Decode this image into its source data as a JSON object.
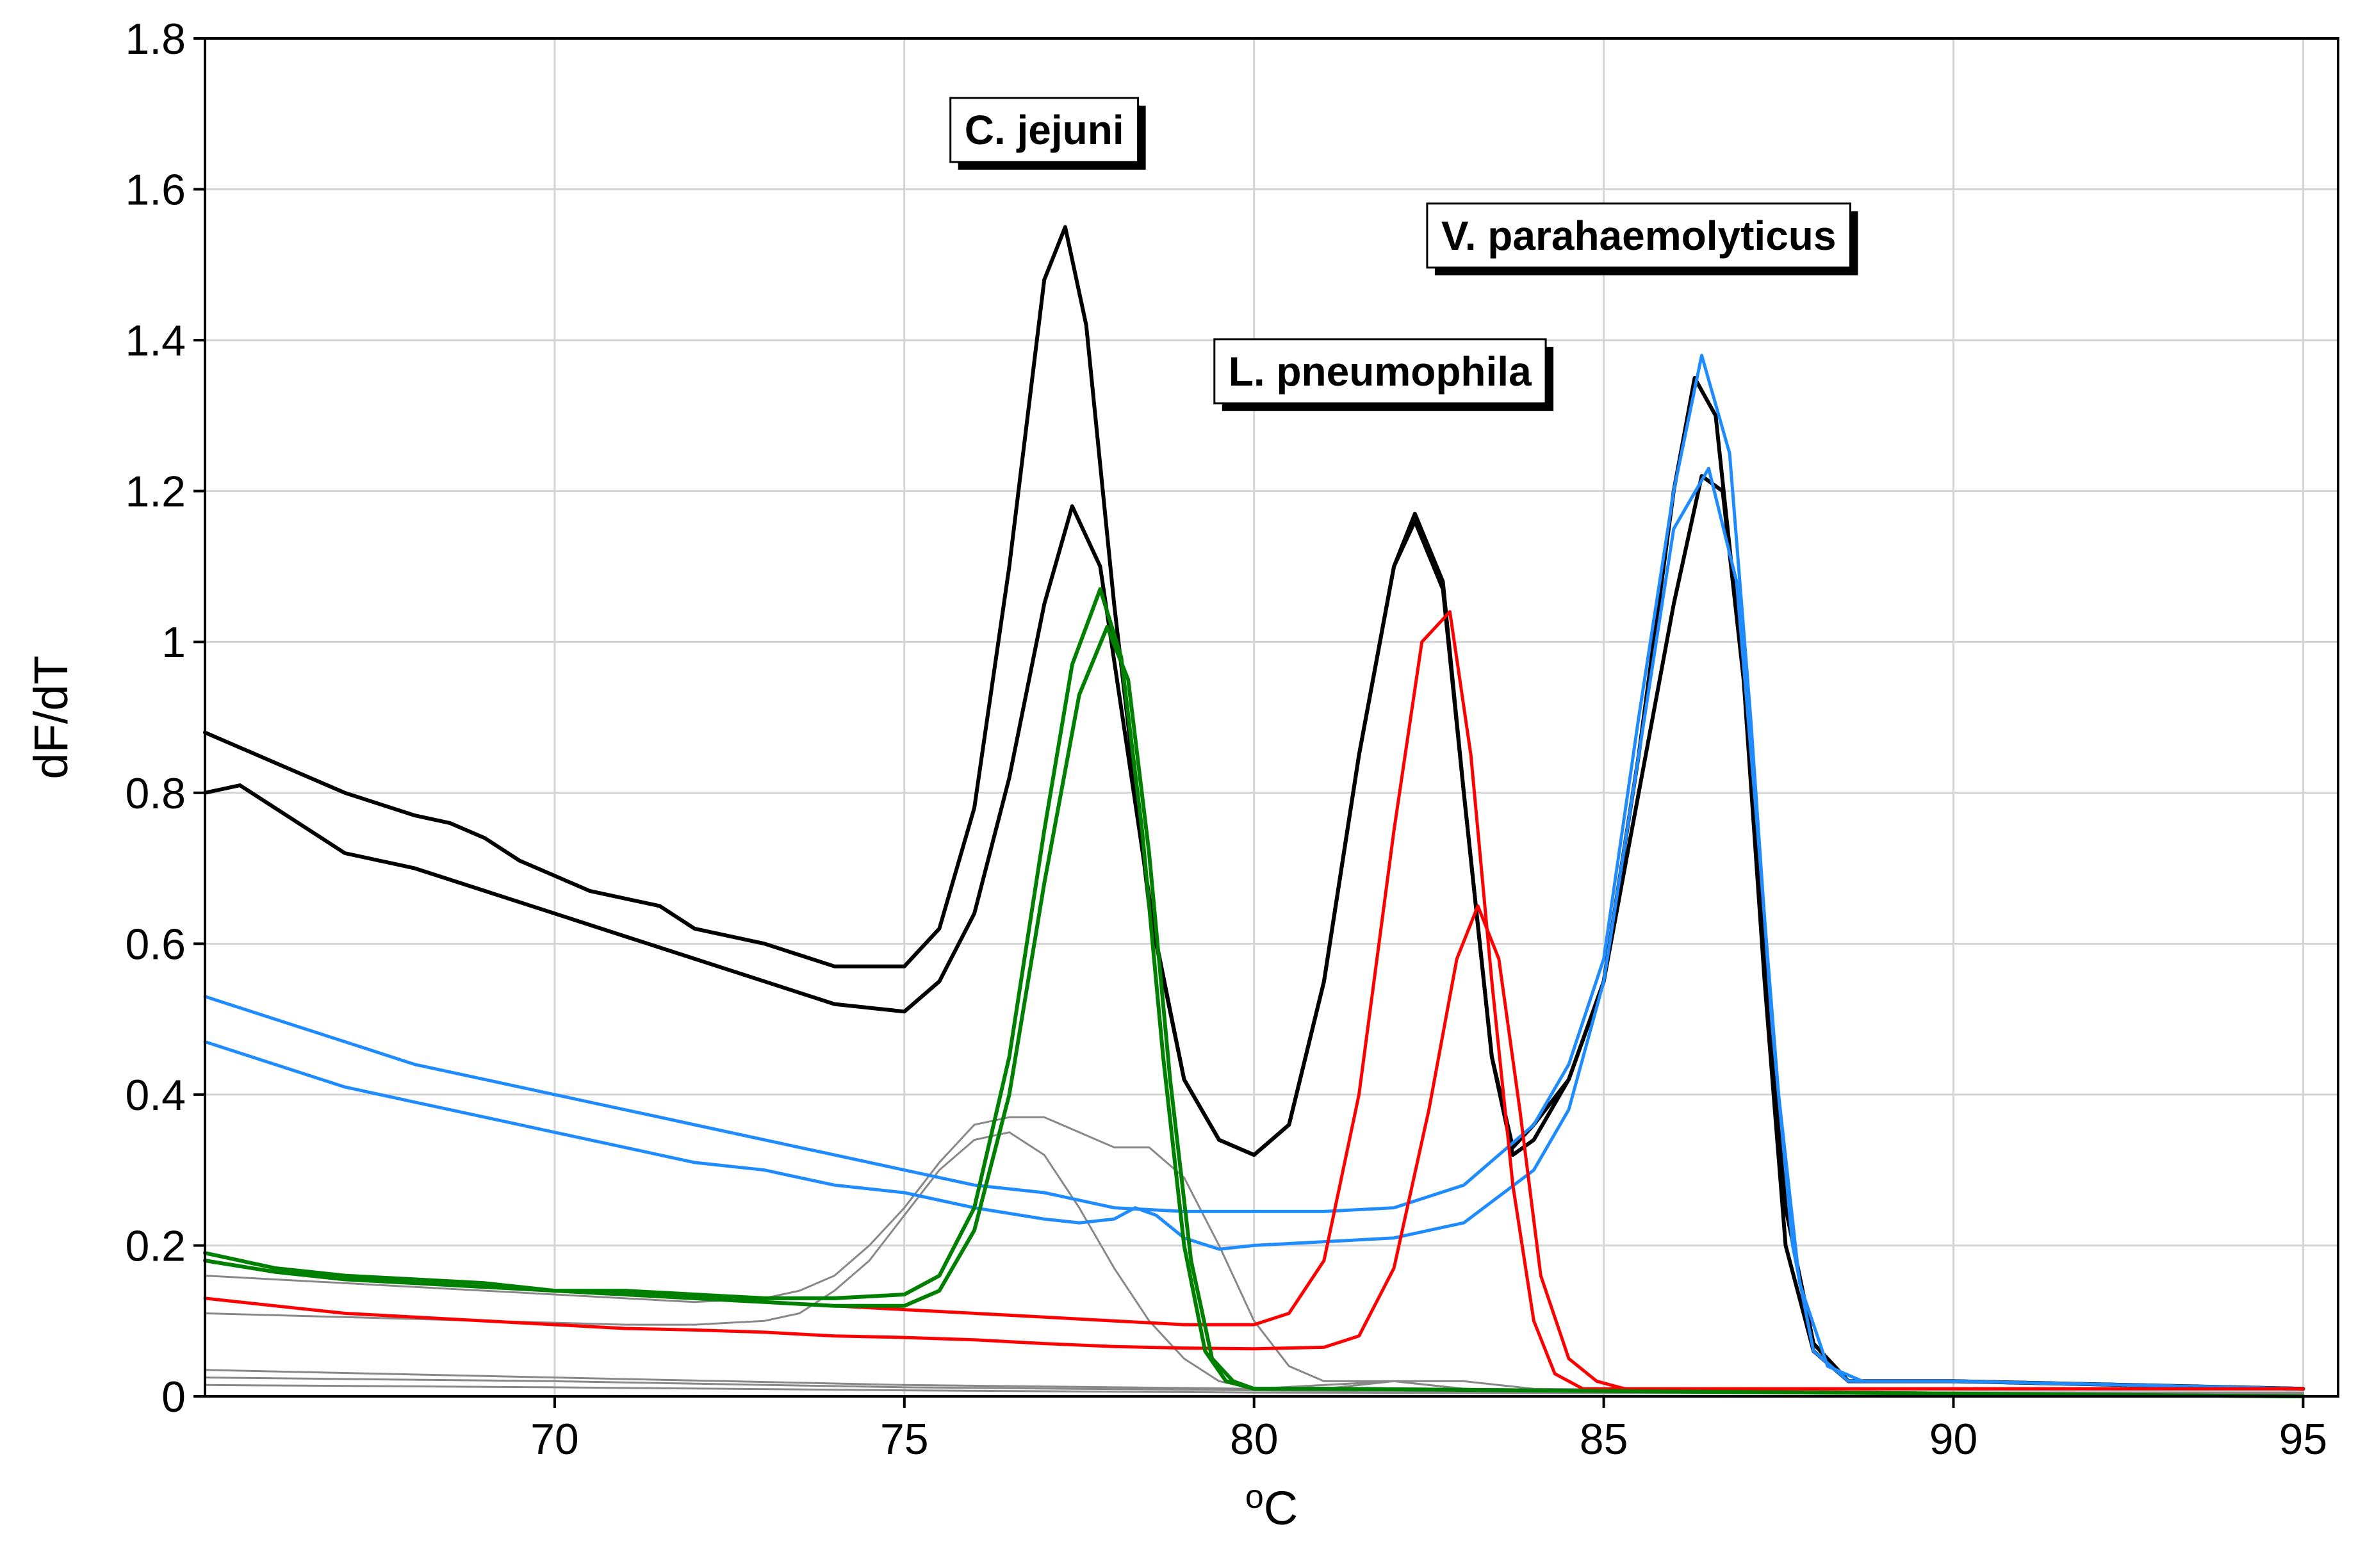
{
  "chart_data": {
    "type": "line",
    "title": "",
    "xlabel": "°C",
    "xlabel_superscript": "o",
    "xlabel_base": "C",
    "ylabel": "dF/dT",
    "xlim": [
      65,
      95.5
    ],
    "ylim": [
      0,
      1.8
    ],
    "xticks": [
      70,
      75,
      80,
      85,
      90,
      95
    ],
    "yticks": [
      0,
      0.2,
      0.4,
      0.6,
      0.8,
      1,
      1.2,
      1.4,
      1.6,
      1.8
    ],
    "xtick_labels": [
      "70",
      "75",
      "80",
      "85",
      "90",
      "95"
    ],
    "ytick_labels": [
      "0",
      "0.2",
      "0.4",
      "0.6",
      "0.8",
      "1",
      "1.2",
      "1.4",
      "1.6",
      "1.8"
    ],
    "grid": true,
    "annotations": [
      {
        "text": "C. jejuni",
        "x": 77.0,
        "y": 1.66
      },
      {
        "text": "L. pneumophila",
        "x": 81.8,
        "y": 1.34
      },
      {
        "text": "V. parahaemolyticus",
        "x": 85.5,
        "y": 1.52
      }
    ],
    "series": [
      {
        "name": "black-1",
        "color": "#000000",
        "width": 6,
        "x": [
          65,
          66,
          67,
          68,
          68.5,
          69,
          69.5,
          70,
          70.5,
          71,
          71.5,
          72,
          73,
          74,
          75,
          75.5,
          76,
          76.5,
          77,
          77.3,
          77.6,
          78,
          78.5,
          79,
          79.5,
          80,
          80.5,
          81,
          81.5,
          82,
          82.3,
          82.7,
          83,
          83.4,
          83.7,
          84,
          84.5,
          85,
          85.5,
          86,
          86.3,
          86.6,
          87,
          87.3,
          87.6,
          88,
          88.5,
          89,
          90,
          95
        ],
        "y": [
          0.88,
          0.84,
          0.8,
          0.77,
          0.76,
          0.74,
          0.71,
          0.69,
          0.67,
          0.66,
          0.65,
          0.62,
          0.6,
          0.57,
          0.57,
          0.62,
          0.78,
          1.1,
          1.48,
          1.55,
          1.42,
          1.05,
          0.65,
          0.42,
          0.34,
          0.32,
          0.36,
          0.55,
          0.85,
          1.1,
          1.17,
          1.08,
          0.8,
          0.45,
          0.33,
          0.36,
          0.42,
          0.55,
          0.85,
          1.2,
          1.35,
          1.3,
          0.95,
          0.55,
          0.2,
          0.06,
          0.02,
          0.02,
          0.02,
          0.01
        ]
      },
      {
        "name": "black-2",
        "color": "#000000",
        "width": 6,
        "x": [
          65,
          65.5,
          66,
          67,
          68,
          69,
          70,
          71,
          72,
          73,
          74,
          75,
          75.5,
          76,
          76.5,
          77,
          77.4,
          77.8,
          78.2,
          78.6,
          79,
          79.5,
          80,
          80.5,
          81,
          81.5,
          82,
          82.3,
          82.7,
          83,
          83.4,
          83.7,
          84,
          84.5,
          85,
          85.5,
          86,
          86.4,
          86.7,
          87,
          87.3,
          87.6,
          88,
          88.5,
          89,
          90,
          95
        ],
        "y": [
          0.8,
          0.81,
          0.78,
          0.72,
          0.7,
          0.67,
          0.64,
          0.61,
          0.58,
          0.55,
          0.52,
          0.51,
          0.55,
          0.64,
          0.82,
          1.05,
          1.18,
          1.1,
          0.85,
          0.6,
          0.42,
          0.34,
          0.32,
          0.36,
          0.55,
          0.85,
          1.1,
          1.16,
          1.07,
          0.8,
          0.45,
          0.32,
          0.34,
          0.42,
          0.55,
          0.8,
          1.05,
          1.22,
          1.2,
          0.95,
          0.6,
          0.25,
          0.07,
          0.02,
          0.02,
          0.02,
          0.01
        ]
      },
      {
        "name": "blue-1",
        "color": "#1e8cff",
        "width": 5,
        "x": [
          65,
          66,
          67,
          68,
          69,
          70,
          71,
          72,
          73,
          74,
          75,
          76,
          77,
          78,
          79,
          80,
          81,
          82,
          83,
          84,
          84.5,
          85,
          85.5,
          86,
          86.4,
          86.8,
          87.1,
          87.4,
          87.7,
          88,
          88.5,
          89,
          90,
          95
        ],
        "y": [
          0.53,
          0.5,
          0.47,
          0.44,
          0.42,
          0.4,
          0.38,
          0.36,
          0.34,
          0.32,
          0.3,
          0.28,
          0.27,
          0.25,
          0.245,
          0.245,
          0.245,
          0.25,
          0.28,
          0.36,
          0.44,
          0.58,
          0.9,
          1.2,
          1.38,
          1.25,
          0.9,
          0.5,
          0.2,
          0.06,
          0.02,
          0.02,
          0.02,
          0.01
        ]
      },
      {
        "name": "blue-2",
        "color": "#1e8cff",
        "width": 5,
        "x": [
          65,
          66,
          67,
          68,
          69,
          70,
          71,
          72,
          73,
          74,
          75,
          76,
          77,
          77.5,
          78,
          78.3,
          78.6,
          79,
          79.5,
          80,
          81,
          82,
          83,
          84,
          84.5,
          85,
          85.5,
          86,
          86.5,
          86.9,
          87.2,
          87.5,
          87.8,
          88.2,
          88.7,
          90,
          95
        ],
        "y": [
          0.47,
          0.44,
          0.41,
          0.39,
          0.37,
          0.35,
          0.33,
          0.31,
          0.3,
          0.28,
          0.27,
          0.25,
          0.235,
          0.23,
          0.235,
          0.25,
          0.24,
          0.21,
          0.195,
          0.2,
          0.205,
          0.21,
          0.23,
          0.3,
          0.38,
          0.55,
          0.85,
          1.15,
          1.23,
          1.08,
          0.75,
          0.4,
          0.15,
          0.04,
          0.02,
          0.02,
          0.01
        ]
      },
      {
        "name": "red-1",
        "color": "#ff0000",
        "width": 5,
        "x": [
          65,
          66,
          67,
          68,
          69,
          70,
          71,
          72,
          73,
          74,
          75,
          76,
          77,
          78,
          79,
          80,
          80.5,
          81,
          81.5,
          82,
          82.4,
          82.8,
          83.1,
          83.4,
          83.7,
          84,
          84.3,
          84.7,
          85,
          86,
          95
        ],
        "y": [
          0.19,
          0.17,
          0.16,
          0.15,
          0.145,
          0.14,
          0.135,
          0.13,
          0.125,
          0.12,
          0.115,
          0.11,
          0.105,
          0.1,
          0.095,
          0.095,
          0.11,
          0.18,
          0.4,
          0.75,
          1.0,
          1.04,
          0.85,
          0.55,
          0.28,
          0.1,
          0.03,
          0.01,
          0.01,
          0.01,
          0.01
        ]
      },
      {
        "name": "red-2",
        "color": "#ff0000",
        "width": 5,
        "x": [
          65,
          66,
          67,
          68,
          69,
          70,
          71,
          72,
          73,
          74,
          75,
          76,
          77,
          78,
          79,
          80,
          81,
          81.5,
          82,
          82.5,
          82.9,
          83.2,
          83.5,
          83.8,
          84.1,
          84.5,
          84.9,
          85.3,
          86,
          95
        ],
        "y": [
          0.13,
          0.12,
          0.11,
          0.105,
          0.1,
          0.095,
          0.09,
          0.088,
          0.085,
          0.08,
          0.078,
          0.075,
          0.07,
          0.066,
          0.064,
          0.063,
          0.065,
          0.08,
          0.17,
          0.38,
          0.58,
          0.65,
          0.58,
          0.38,
          0.16,
          0.05,
          0.02,
          0.01,
          0.01,
          0.01
        ]
      },
      {
        "name": "green-1",
        "color": "#008000",
        "width": 6,
        "x": [
          65,
          66,
          67,
          68,
          69,
          70,
          71,
          72,
          73,
          74,
          75,
          75.5,
          76,
          76.5,
          77,
          77.4,
          77.8,
          78.1,
          78.4,
          78.7,
          79,
          79.3,
          79.6,
          80,
          81,
          95
        ],
        "y": [
          0.19,
          0.17,
          0.16,
          0.155,
          0.15,
          0.14,
          0.14,
          0.135,
          0.13,
          0.13,
          0.135,
          0.16,
          0.25,
          0.45,
          0.75,
          0.97,
          1.07,
          0.98,
          0.75,
          0.45,
          0.2,
          0.06,
          0.02,
          0.01,
          0.01,
          0.0
        ]
      },
      {
        "name": "green-2",
        "color": "#008000",
        "width": 6,
        "x": [
          65,
          66,
          67,
          68,
          69,
          70,
          71,
          72,
          73,
          74,
          75,
          75.5,
          76,
          76.5,
          77,
          77.5,
          77.9,
          78.2,
          78.5,
          78.8,
          79.1,
          79.4,
          79.7,
          80,
          81,
          95
        ],
        "y": [
          0.18,
          0.165,
          0.155,
          0.15,
          0.145,
          0.14,
          0.135,
          0.13,
          0.125,
          0.12,
          0.12,
          0.14,
          0.22,
          0.4,
          0.68,
          0.93,
          1.02,
          0.95,
          0.72,
          0.42,
          0.18,
          0.05,
          0.02,
          0.01,
          0.01,
          0.0
        ]
      },
      {
        "name": "gray-1",
        "color": "#888888",
        "width": 3,
        "x": [
          65,
          67,
          69,
          71,
          72,
          73,
          73.5,
          74,
          74.5,
          75,
          75.5,
          76,
          76.5,
          77,
          77.5,
          78,
          78.5,
          79,
          79.5,
          80,
          80.5,
          81,
          82,
          83,
          84,
          95
        ],
        "y": [
          0.16,
          0.15,
          0.14,
          0.13,
          0.125,
          0.13,
          0.14,
          0.16,
          0.2,
          0.25,
          0.31,
          0.36,
          0.37,
          0.37,
          0.35,
          0.33,
          0.33,
          0.29,
          0.2,
          0.1,
          0.04,
          0.02,
          0.02,
          0.02,
          0.01,
          0.0
        ]
      },
      {
        "name": "gray-2",
        "color": "#888888",
        "width": 3,
        "x": [
          65,
          67,
          69,
          71,
          72,
          73,
          73.5,
          74,
          74.5,
          75,
          75.5,
          76,
          76.5,
          77,
          77.5,
          78,
          78.5,
          79,
          79.5,
          80,
          80.5,
          81,
          82,
          83,
          95
        ],
        "y": [
          0.11,
          0.105,
          0.1,
          0.095,
          0.095,
          0.1,
          0.11,
          0.14,
          0.18,
          0.24,
          0.3,
          0.34,
          0.35,
          0.32,
          0.25,
          0.17,
          0.1,
          0.05,
          0.02,
          0.01,
          0.01,
          0.01,
          0.02,
          0.01,
          0.0
        ]
      },
      {
        "name": "gray-3",
        "color": "#888888",
        "width": 3,
        "x": [
          65,
          70,
          75,
          80,
          82,
          83,
          85,
          95
        ],
        "y": [
          0.035,
          0.025,
          0.015,
          0.01,
          0.02,
          0.01,
          0.005,
          0.005
        ]
      },
      {
        "name": "gray-4",
        "color": "#888888",
        "width": 3,
        "x": [
          65,
          70,
          75,
          80,
          85,
          95
        ],
        "y": [
          0.025,
          0.02,
          0.012,
          0.008,
          0.005,
          0.005
        ]
      },
      {
        "name": "gray-5",
        "color": "#888888",
        "width": 3,
        "x": [
          65,
          70,
          75,
          80,
          85,
          95
        ],
        "y": [
          0.015,
          0.012,
          0.008,
          0.005,
          0.004,
          0.004
        ]
      }
    ]
  }
}
